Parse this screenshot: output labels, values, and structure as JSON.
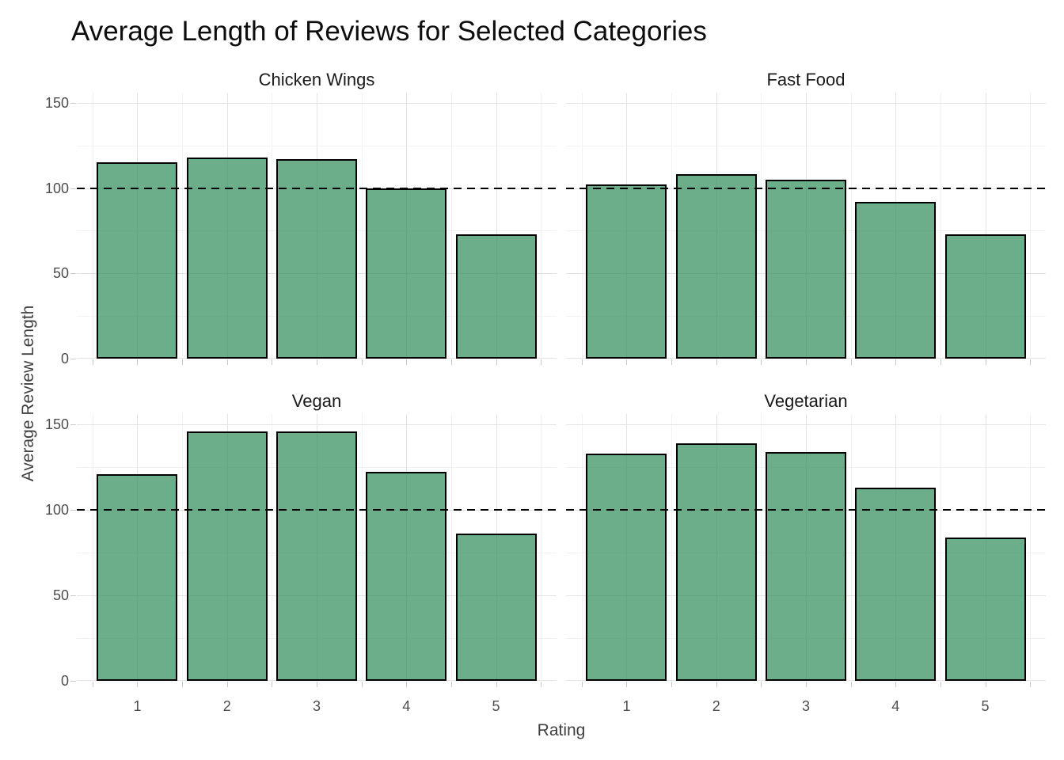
{
  "title": "Average Length of Reviews for Selected Categories",
  "axes": {
    "x_title": "Rating",
    "y_title": "Average Review Length",
    "x_tick_labels": [
      "1",
      "2",
      "3",
      "4",
      "5"
    ],
    "y_tick_labels": [
      "0",
      "50",
      "100",
      "150"
    ]
  },
  "chart_data": {
    "type": "bar",
    "title": "Average Length of Reviews for Selected Categories",
    "xlabel": "Rating",
    "ylabel": "Average Review Length",
    "categories": [
      1,
      2,
      3,
      4,
      5
    ],
    "facets": [
      {
        "title": "Chicken Wings",
        "values": [
          115,
          118,
          117,
          100,
          73
        ]
      },
      {
        "title": "Fast Food",
        "values": [
          102,
          108,
          105,
          92,
          73
        ]
      },
      {
        "title": "Vegan",
        "values": [
          121,
          146,
          146,
          122,
          86
        ]
      },
      {
        "title": "Vegetarian",
        "values": [
          133,
          139,
          134,
          113,
          84
        ]
      }
    ],
    "reference_line": {
      "y": 100,
      "style": "dashed",
      "color": "#000000"
    },
    "ylim": [
      0,
      156
    ],
    "y_major_ticks": [
      0,
      50,
      100,
      150
    ],
    "y_minor_gridlines": [
      25,
      75,
      125
    ],
    "x_major_gridlines": [
      1,
      2,
      3,
      4,
      5
    ],
    "x_minor_gridlines": [
      0.5,
      1.5,
      2.5,
      3.5,
      4.5,
      5.5
    ],
    "bar_width_units": 0.9,
    "grid": true,
    "legend": "none",
    "colors": {
      "bar_fill": "#6CAE89",
      "bar_fill_rgba": "rgba(46,139,87,0.70)",
      "bar_stroke": "#000000",
      "grid_major": "#e3e3e3",
      "grid_minor": "#f2f2f2",
      "tick_mark": "#c9c9c9",
      "tick_label": "#4d4d4d",
      "axis_title": "#404040",
      "facet_title": "#1a1a1a",
      "plot_title": "#0d0d0d",
      "background": "#ffffff"
    }
  }
}
